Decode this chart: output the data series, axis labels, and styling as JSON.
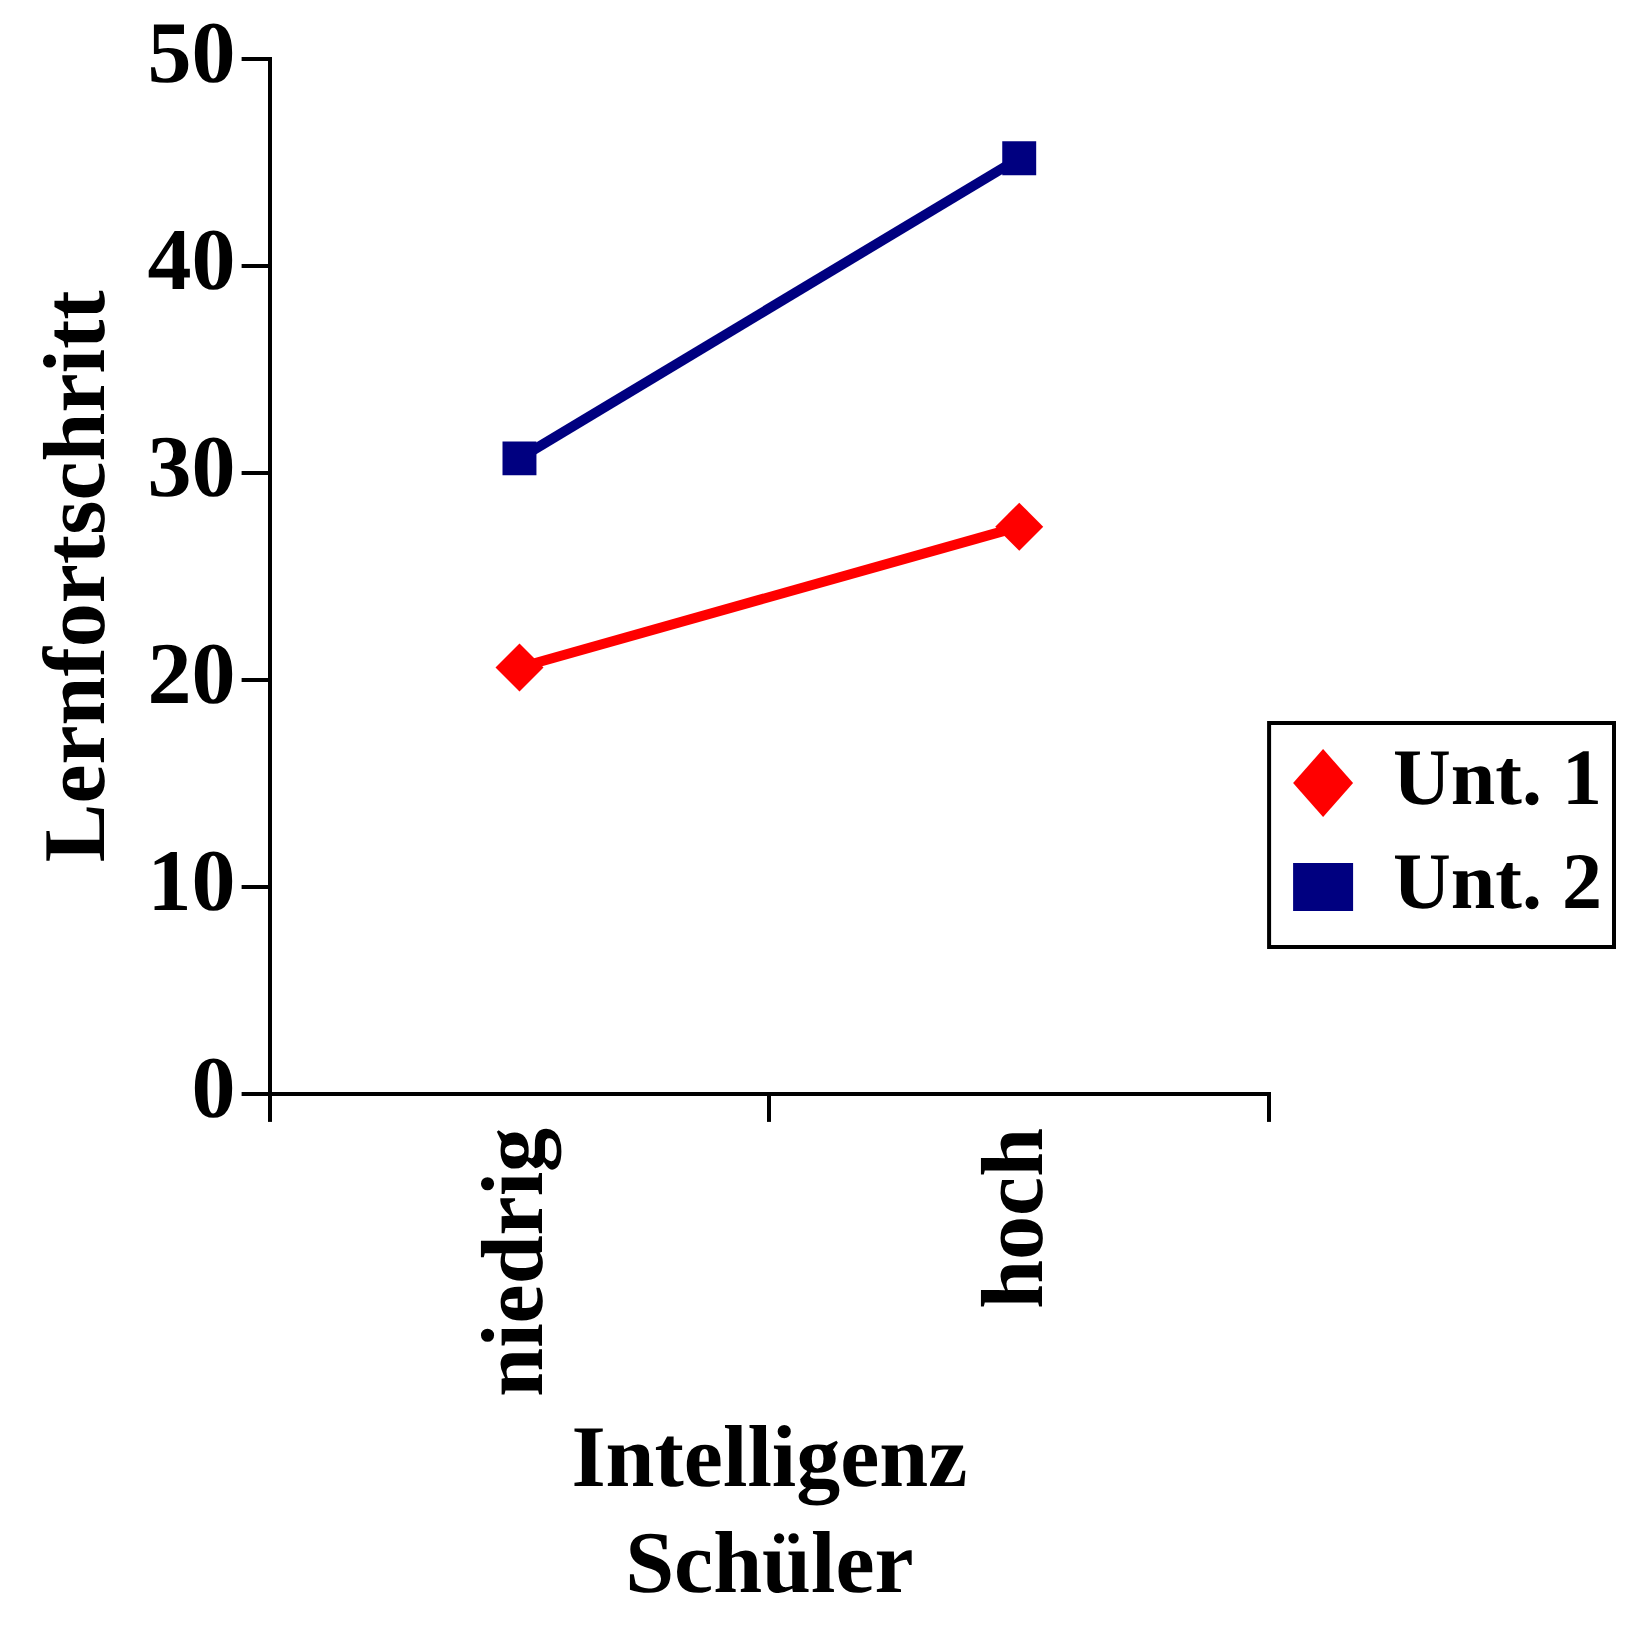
{
  "chart_data": {
    "type": "line",
    "xlabel": "Intelligenz Schüler",
    "ylabel": "Lernfortschritt",
    "categories": [
      "niedrig",
      "hoch"
    ],
    "series": [
      {
        "name": "Unt. 1",
        "color": "#ff0000",
        "marker": "diamond",
        "values": [
          20.6,
          27.4
        ]
      },
      {
        "name": "Unt. 2",
        "color": "#000080",
        "marker": "square",
        "values": [
          30.7,
          45.2
        ]
      }
    ],
    "ylim": [
      0,
      50
    ],
    "yticks": [
      0,
      10,
      20,
      30,
      40,
      50
    ],
    "grid": false,
    "legend": "right"
  }
}
